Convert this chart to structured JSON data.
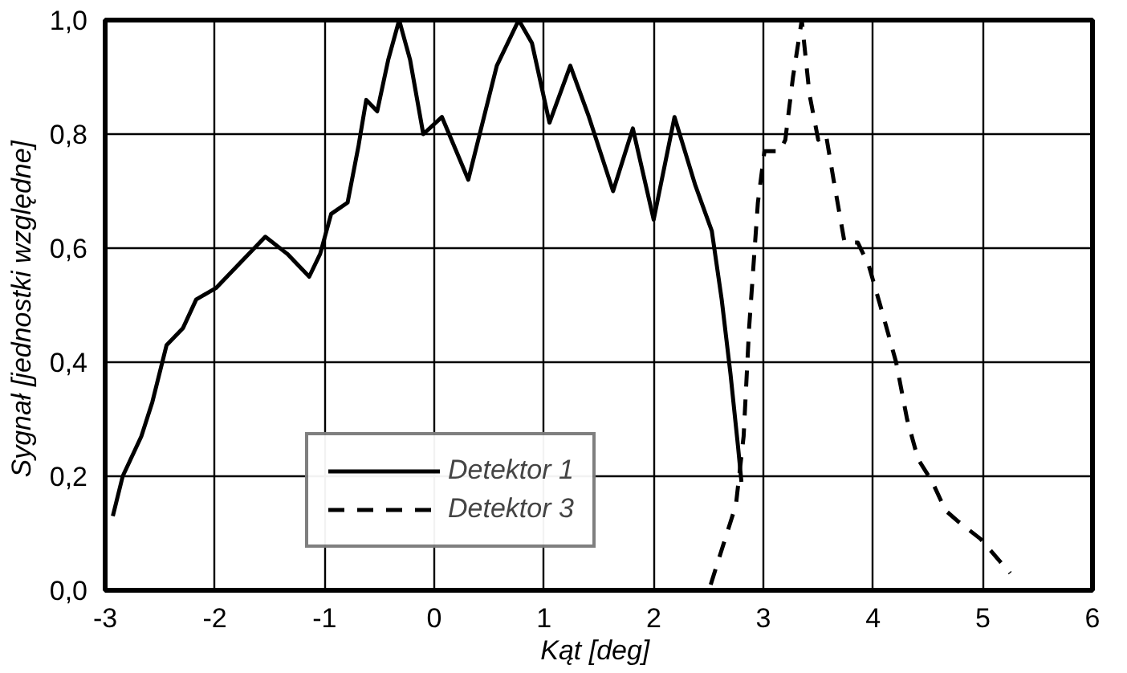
{
  "chart_data": {
    "type": "line",
    "xlabel": "Kąt  [deg]",
    "ylabel": "Sygnał  [jednostki względne]",
    "xlim": [
      -3,
      6
    ],
    "ylim": [
      0,
      1
    ],
    "xticks": [
      -3,
      -2,
      -1,
      0,
      1,
      2,
      3,
      4,
      5,
      6
    ],
    "yticks": [
      {
        "value": 0,
        "label": "0,0"
      },
      {
        "value": 0.2,
        "label": "0,2"
      },
      {
        "value": 0.4,
        "label": "0,4"
      },
      {
        "value": 0.6,
        "label": "0,6"
      },
      {
        "value": 0.8,
        "label": "0,8"
      },
      {
        "value": 1,
        "label": "1,0"
      }
    ],
    "grid": true,
    "legend": "bottom",
    "marker": "none",
    "series": [
      {
        "name": "Detektor 1",
        "color": "#000000",
        "line_style": "solid",
        "x": [
          -2.93,
          -2.84,
          -2.67,
          -2.57,
          -2.44,
          -2.29,
          -2.17,
          -1.99,
          -1.79,
          -1.54,
          -1.34,
          -1.14,
          -1.04,
          -0.94,
          -0.79,
          -0.69,
          -0.62,
          -0.52,
          -0.42,
          -0.32,
          -0.22,
          -0.1,
          0.07,
          0.31,
          0.57,
          0.77,
          0.89,
          1.05,
          1.24,
          1.41,
          1.63,
          1.81,
          2.0,
          2.19,
          2.38,
          2.53,
          2.62,
          2.7,
          2.77,
          2.8
        ],
        "values": [
          0.13,
          0.2,
          0.27,
          0.33,
          0.43,
          0.46,
          0.51,
          0.53,
          0.57,
          0.62,
          0.59,
          0.55,
          0.59,
          0.66,
          0.68,
          0.78,
          0.86,
          0.84,
          0.93,
          1.0,
          0.93,
          0.8,
          0.83,
          0.72,
          0.92,
          1.0,
          0.96,
          0.82,
          0.92,
          0.83,
          0.7,
          0.81,
          0.65,
          0.83,
          0.71,
          0.63,
          0.51,
          0.38,
          0.25,
          0.19
        ]
      },
      {
        "name": "Detektor 3",
        "color": "#000000",
        "line_style": "dashed",
        "x": [
          2.52,
          2.75,
          2.82,
          2.87,
          2.95,
          3.01,
          3.15,
          3.2,
          3.27,
          3.35,
          3.42,
          3.5,
          3.57,
          3.64,
          3.74,
          3.86,
          3.96,
          4.08,
          4.21,
          4.31,
          4.41,
          4.54,
          4.66,
          4.78,
          4.98,
          5.25
        ],
        "values": [
          0.01,
          0.15,
          0.27,
          0.46,
          0.68,
          0.77,
          0.77,
          0.79,
          0.9,
          1.0,
          0.87,
          0.79,
          0.8,
          0.72,
          0.61,
          0.61,
          0.57,
          0.49,
          0.4,
          0.3,
          0.23,
          0.19,
          0.14,
          0.12,
          0.09,
          0.03
        ]
      }
    ]
  }
}
